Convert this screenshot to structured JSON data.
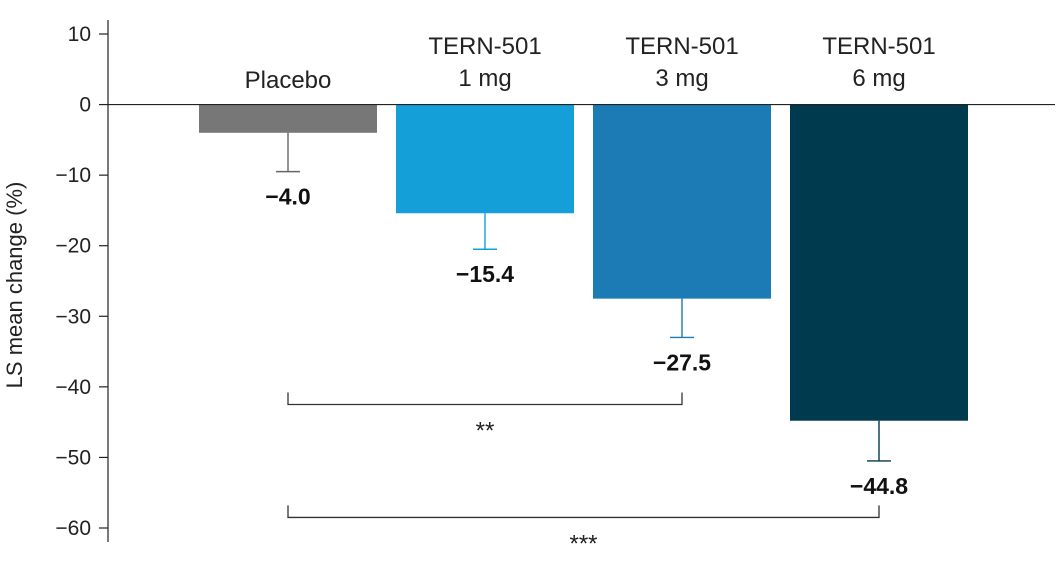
{
  "chart_data": {
    "type": "bar",
    "categories": [
      [
        "Placebo"
      ],
      [
        "TERN-501",
        "1 mg"
      ],
      [
        "TERN-501",
        "3 mg"
      ],
      [
        "TERN-501",
        "6 mg"
      ]
    ],
    "values": [
      -4.0,
      -15.4,
      -27.5,
      -44.8
    ],
    "value_labels": [
      "−4.0",
      "−15.4",
      "−27.5",
      "−44.8"
    ],
    "error_low": [
      -9.5,
      -20.5,
      -33.0,
      -50.5
    ],
    "colors": [
      "#777777",
      "#159fd8",
      "#1c7bb4",
      "#003a4f"
    ],
    "ylabel": "LS mean change (%)",
    "ylim": [
      -62,
      10
    ],
    "yticks": [
      10,
      0,
      -10,
      -20,
      -30,
      -40,
      -50,
      -60
    ],
    "ytick_labels": [
      "10",
      "0",
      "−10",
      "−20",
      "−30",
      "−40",
      "−50",
      "−60"
    ],
    "significance": [
      {
        "from": 0,
        "to": 2,
        "label": "**",
        "y": -42.5
      },
      {
        "from": 0,
        "to": 3,
        "label": "***",
        "y": -58.5
      }
    ]
  }
}
